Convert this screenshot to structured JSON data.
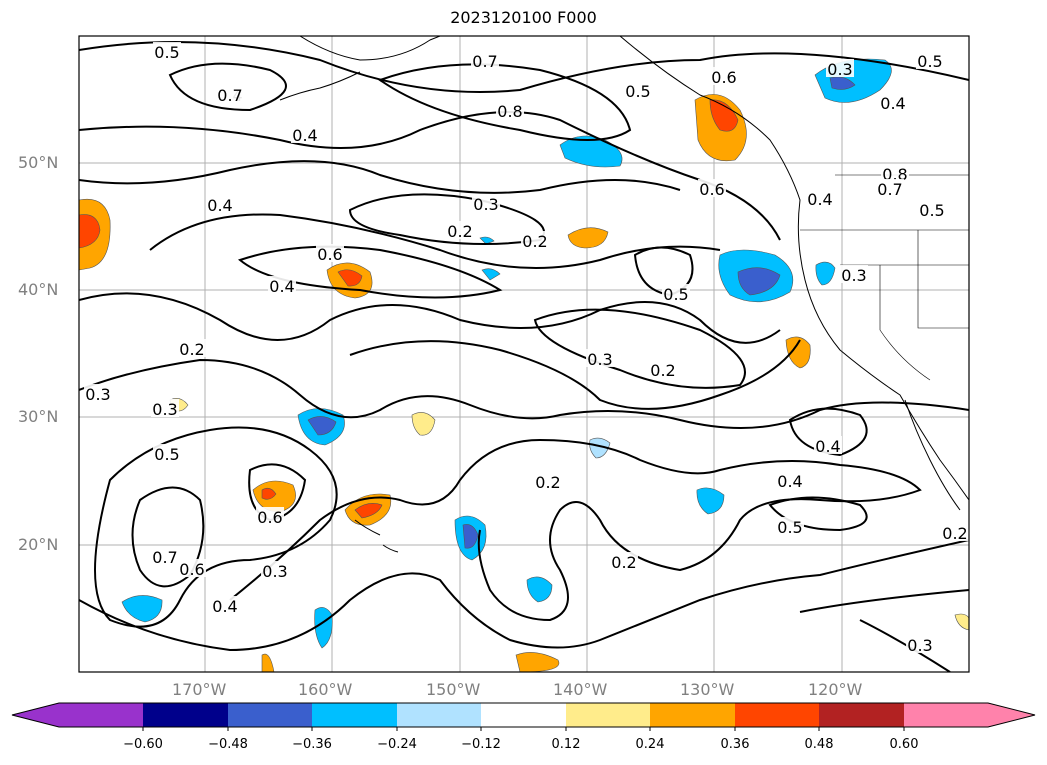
{
  "title": "2023120100 F000",
  "lat_labels": [
    "50°N",
    "40°N",
    "30°N",
    "20°N"
  ],
  "lon_labels": [
    "170°W",
    "160°W",
    "150°W",
    "140°W",
    "130°W",
    "120°W"
  ],
  "colorbar": {
    "ticks": [
      "−0.60",
      "−0.48",
      "−0.36",
      "−0.24",
      "−0.12",
      "0.12",
      "0.24",
      "0.36",
      "0.48",
      "0.60"
    ],
    "colors": [
      "#9932CC",
      "#00008B",
      "#3A5FCD",
      "#00BFFF",
      "#B0E2FF",
      "#FFFFFF",
      "#FFEC8B",
      "#FFA500",
      "#FF4500",
      "#B22222",
      "#FF82AB"
    ]
  },
  "contour_labels": [
    "0.5",
    "0.4",
    "0.7",
    "0.7",
    "0.8",
    "0.4",
    "0.5",
    "0.6",
    "0.3",
    "0.5",
    "0.4",
    "0.4",
    "0.4",
    "0.3",
    "0.2",
    "0.2",
    "0.6",
    "0.6",
    "0.8",
    "0.7",
    "0.5",
    "0.4",
    "0.5",
    "0.3",
    "0.2",
    "0.3",
    "0.2",
    "0.3",
    "0.3",
    "0.5",
    "0.4",
    "0.4",
    "0.6",
    "0.5",
    "0.7",
    "0.6",
    "0.4",
    "0.3",
    "0.2",
    "0.2",
    "0.2",
    "0.3"
  ]
}
